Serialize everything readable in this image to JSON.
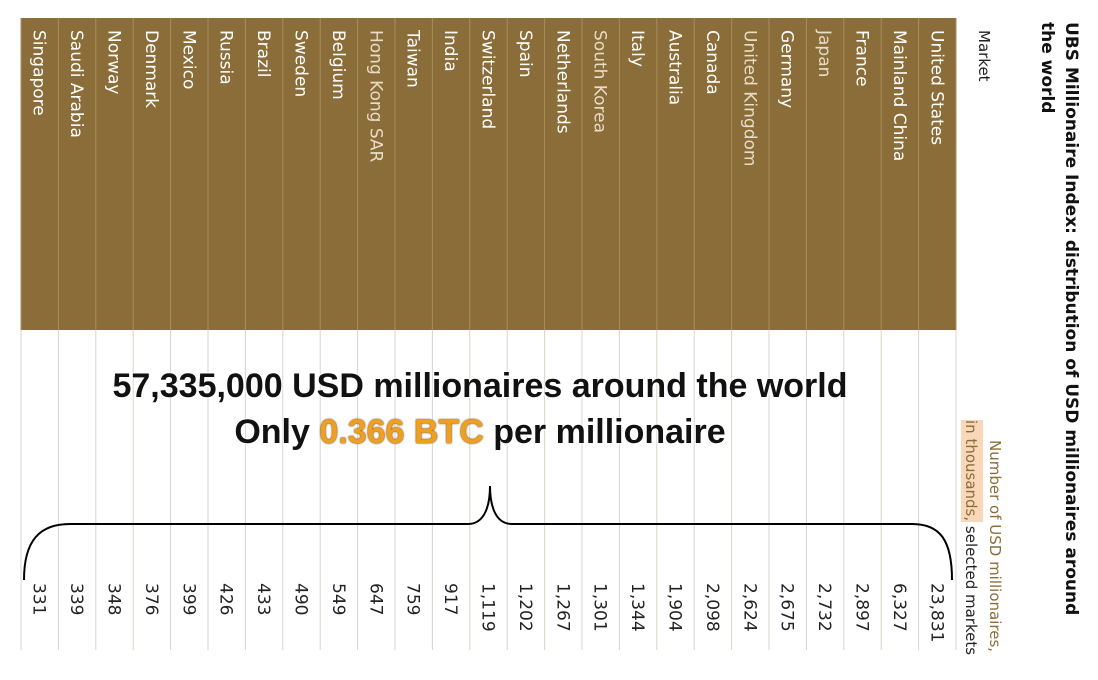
{
  "colors": {
    "header_fill": "#8b6d39",
    "header_text": "#ffffff",
    "header_text_dim": "#e8ddc8",
    "gridline": "#d8d4c8",
    "accent": "#f0a020",
    "highlight": "#f8d8b8",
    "value_text": "#222222",
    "brace": "#000000"
  },
  "chart_data": {
    "type": "table",
    "title": "UBS Millionaire Index: distribution of USD millionaires around the world",
    "title_lines": [
      "UBS Millionaire Index: distribution of USD millionaires around",
      "the world"
    ],
    "column_headers": {
      "market": "Market",
      "value_part1": "Number of USD millionaires,",
      "value_part2": "in thousands,",
      "value_part3": " selected markets"
    },
    "rows": [
      {
        "market": "United States",
        "value": "23,831",
        "dim": false
      },
      {
        "market": "Mainland China",
        "value": "6,327",
        "dim": false
      },
      {
        "market": "France",
        "value": "2,897",
        "dim": false
      },
      {
        "market": "Japan",
        "value": "2,732",
        "dim": true
      },
      {
        "market": "Germany",
        "value": "2,675",
        "dim": false
      },
      {
        "market": "United Kingdom",
        "value": "2,624",
        "dim": true
      },
      {
        "market": "Canada",
        "value": "2,098",
        "dim": false
      },
      {
        "market": "Australia",
        "value": "1,904",
        "dim": false
      },
      {
        "market": "Italy",
        "value": "1,344",
        "dim": false
      },
      {
        "market": "South Korea",
        "value": "1,301",
        "dim": true
      },
      {
        "market": "Netherlands",
        "value": "1,267",
        "dim": false
      },
      {
        "market": "Spain",
        "value": "1,202",
        "dim": false
      },
      {
        "market": "Switzerland",
        "value": "1,119",
        "dim": false
      },
      {
        "market": "India",
        "value": "917",
        "dim": false
      },
      {
        "market": "Taiwan",
        "value": "759",
        "dim": false
      },
      {
        "market": "Hong Kong SAR",
        "value": "647",
        "dim": true
      },
      {
        "market": "Belgium",
        "value": "549",
        "dim": false
      },
      {
        "market": "Sweden",
        "value": "490",
        "dim": false
      },
      {
        "market": "Brazil",
        "value": "433",
        "dim": false
      },
      {
        "market": "Russia",
        "value": "426",
        "dim": false
      },
      {
        "market": "Mexico",
        "value": "399",
        "dim": false
      },
      {
        "market": "Denmark",
        "value": "376",
        "dim": false
      },
      {
        "market": "Norway",
        "value": "348",
        "dim": false
      },
      {
        "market": "Saudi Arabia",
        "value": "339",
        "dim": false
      },
      {
        "market": "Singapore",
        "value": "331",
        "dim": false
      }
    ]
  },
  "overlay": {
    "line1": "57,335,000 USD millionaires around the world",
    "line2_prefix": "Only ",
    "line2_highlight": "0.366 BTC",
    "line2_suffix": " per millionaire"
  }
}
